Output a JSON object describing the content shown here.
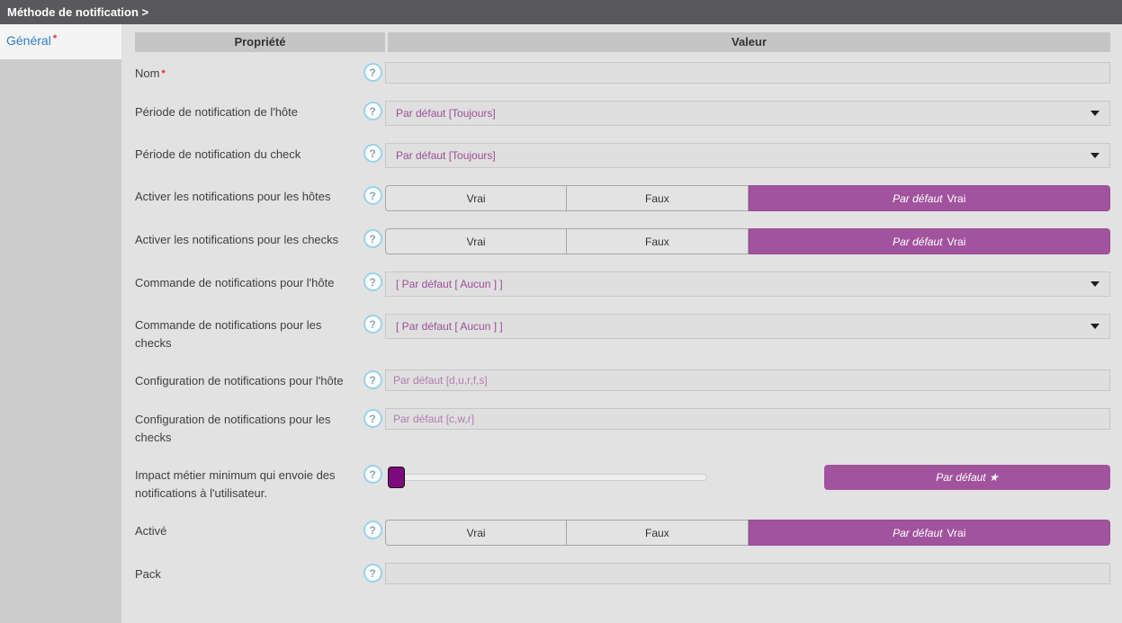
{
  "breadcrumb": {
    "title": "Méthode de notification >"
  },
  "sidebar": {
    "tabs": [
      {
        "label": "Général",
        "required_mark": "*"
      }
    ]
  },
  "table": {
    "property_header": "Propriété",
    "value_header": "Valeur"
  },
  "help_icon_glyph": "?",
  "colors": {
    "accent_purple": "#a2539e",
    "slider_handle_purple": "#7c0a7c",
    "topbar_gray": "#59595b",
    "tab_blue": "#2d7fc1",
    "required_red": "#e03030",
    "value_text_purple": "#9c4d9a"
  },
  "form": {
    "rows": [
      {
        "type": "text",
        "label": "Nom",
        "required_mark": "*",
        "value": "",
        "placeholder": ""
      },
      {
        "type": "select",
        "label": "Période de notification de l'hôte",
        "value": "Par défaut [Toujours]"
      },
      {
        "type": "select",
        "label": "Période de notification du check",
        "value": "Par défaut [Toujours]"
      },
      {
        "type": "tristate",
        "label": "Activer les notifications pour les hôtes",
        "options": [
          "Vrai",
          "Faux"
        ],
        "selected": "default",
        "default_prefix": "Par défaut",
        "default_value": "Vrai"
      },
      {
        "type": "tristate",
        "label": "Activer les notifications pour les checks",
        "options": [
          "Vrai",
          "Faux"
        ],
        "selected": "default",
        "default_prefix": "Par défaut",
        "default_value": "Vrai"
      },
      {
        "type": "select",
        "label": "Commande de notifications pour l'hôte",
        "value": "[ Par défaut [ Aucun ] ]"
      },
      {
        "type": "select",
        "label": "Commande de notifications pour les checks",
        "value": "[ Par défaut [ Aucun ] ]"
      },
      {
        "type": "text",
        "label": "Configuration de notifications pour l'hôte",
        "value": "",
        "placeholder": "Par défaut [d,u,r,f,s]"
      },
      {
        "type": "text",
        "label": "Configuration de notifications pour les checks",
        "value": "",
        "placeholder": "Par défaut [c,w,r]"
      },
      {
        "type": "slider",
        "label": "Impact métier minimum qui envoie des notifications à l'utilisateur.",
        "slider_position_pct": 0,
        "default_button_label": "Par défaut ★"
      },
      {
        "type": "tristate",
        "label": "Activé",
        "options": [
          "Vrai",
          "Faux"
        ],
        "selected": "default",
        "default_prefix": "Par défaut",
        "default_value": "Vrai"
      },
      {
        "type": "text",
        "label": "Pack",
        "value": "",
        "placeholder": ""
      }
    ]
  }
}
